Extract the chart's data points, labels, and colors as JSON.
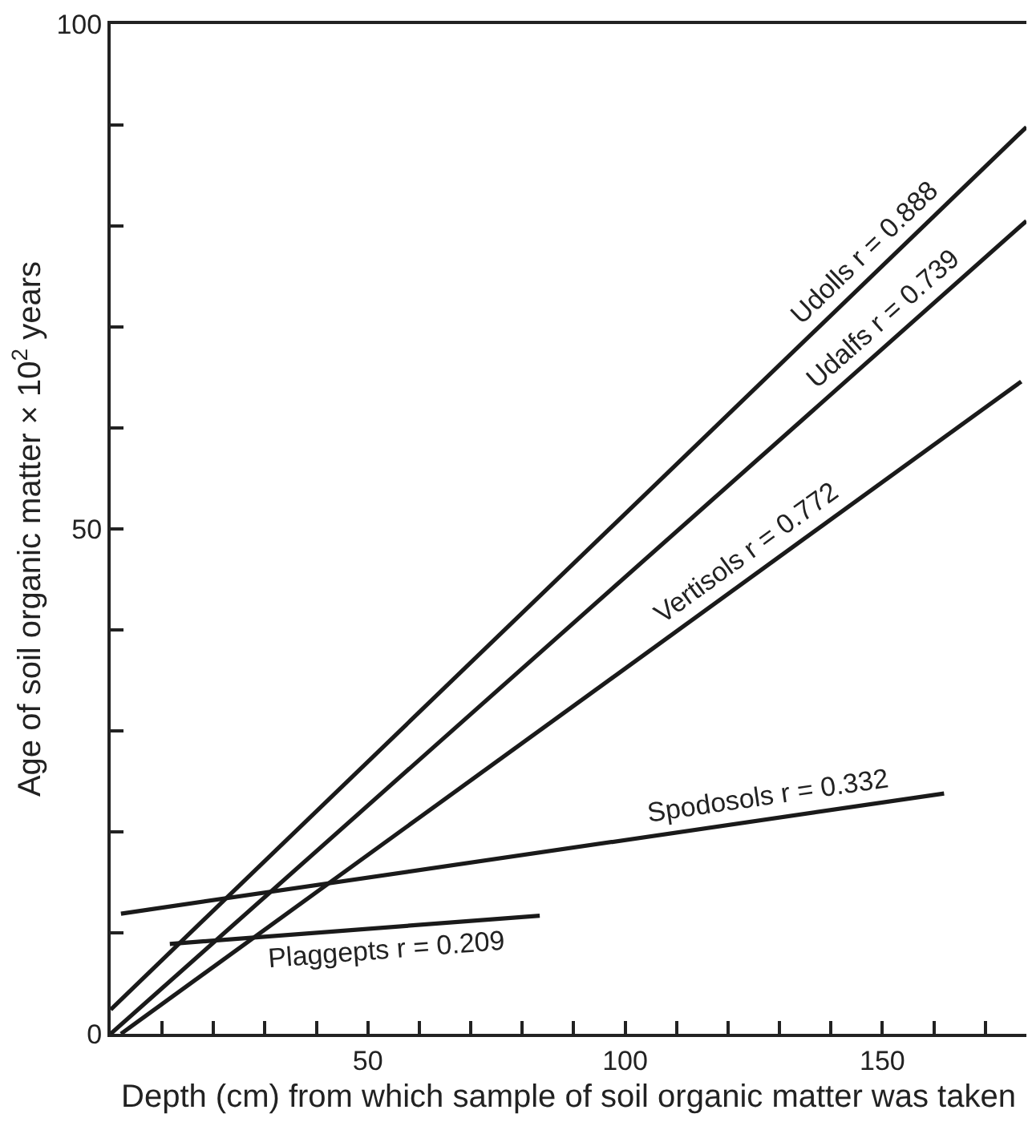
{
  "chart_data": {
    "type": "line",
    "xlabel": "Depth (cm) from which sample of soil organic matter was taken",
    "ylabel": "Age of soil organic matter × 10$^{2}$ years",
    "xlim": [
      0,
      178
    ],
    "ylim": [
      0,
      100
    ],
    "xticks": [
      {
        "value": 10,
        "label": null
      },
      {
        "value": 20,
        "label": null
      },
      {
        "value": 30,
        "label": null
      },
      {
        "value": 40,
        "label": null
      },
      50,
      {
        "value": 60,
        "label": null
      },
      {
        "value": 70,
        "label": null
      },
      {
        "value": 80,
        "label": null
      },
      {
        "value": 90,
        "label": null
      },
      100,
      {
        "value": 110,
        "label": null
      },
      {
        "value": 120,
        "label": null
      },
      {
        "value": 130,
        "label": null
      },
      {
        "value": 140,
        "label": null
      },
      150,
      {
        "value": 160,
        "label": null
      },
      {
        "value": 170,
        "label": null
      }
    ],
    "yticks": [
      0,
      {
        "value": 10,
        "label": null
      },
      {
        "value": 20,
        "label": null
      },
      {
        "value": 30,
        "label": null
      },
      {
        "value": 40,
        "label": null
      },
      50,
      {
        "value": 60,
        "label": null
      },
      {
        "value": 70,
        "label": null
      },
      {
        "value": 80,
        "label": null
      },
      {
        "value": 90,
        "label": null
      },
      100
    ],
    "marker": "none",
    "line_style": "solid",
    "series": [
      {
        "color": "#1a1a1a",
        "x": [
          0,
          178
        ],
        "values": [
          2.4,
          89.8
        ]
      },
      {
        "color": "#1a1a1a",
        "x": [
          0,
          178
        ],
        "values": [
          0,
          80.5
        ]
      },
      {
        "color": "#1a1a1a",
        "x": [
          2,
          177
        ],
        "values": [
          0,
          64.6
        ]
      },
      {
        "color": "#1a1a1a",
        "x": [
          2,
          162
        ],
        "values": [
          11.9,
          23.8
        ]
      },
      {
        "color": "#1a1a1a",
        "x": [
          11.5,
          83.4
        ],
        "values": [
          8.9,
          11.7
        ]
      }
    ],
    "annotations": [
      "Udolls r = 0.888",
      "Udalfs r = 0.739",
      "Vertisols r = 0.772",
      "Spodosols r = 0.332",
      "Plaggepts r = 0.209"
    ]
  }
}
